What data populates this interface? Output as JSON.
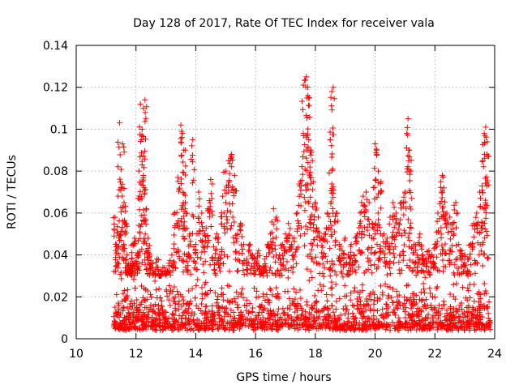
{
  "chart_data": {
    "type": "scatter",
    "title": "Day 128 of 2017, Rate Of TEC Index for receiver vala",
    "xlabel": "GPS time / hours",
    "ylabel": "ROTI / TECUs",
    "xlim": [
      10,
      24
    ],
    "ylim": [
      0,
      0.14
    ],
    "x_ticks": [
      "10",
      "12",
      "14",
      "16",
      "18",
      "20",
      "22",
      "24"
    ],
    "y_ticks": [
      "0",
      "0.02",
      "0.04",
      "0.06",
      "0.08",
      "0.1",
      "0.12",
      "0.14"
    ],
    "grid": true,
    "marker": "plus",
    "color": "#ff0000",
    "series": [
      {
        "x": [
          11.3,
          11.35,
          11.4,
          11.45,
          11.5,
          11.55,
          11.6,
          11.65,
          11.7,
          11.75,
          11.8,
          11.85,
          11.9,
          11.95,
          12.0,
          12.05,
          12.1,
          12.15,
          12.2,
          12.25,
          12.3,
          12.35,
          12.4,
          12.45,
          12.5,
          12.6,
          12.7,
          12.8,
          12.9,
          13.0,
          13.1,
          13.2,
          13.3,
          13.4,
          13.5,
          13.55,
          13.6,
          13.65,
          13.7,
          13.8,
          13.9,
          14.0,
          14.1,
          14.2,
          14.3,
          14.4,
          14.5,
          14.6,
          14.7,
          14.8,
          14.9,
          15.0,
          15.1,
          15.2,
          15.3,
          15.4,
          15.5,
          15.6,
          15.7,
          15.8,
          15.9,
          16.0,
          16.1,
          16.2,
          16.3,
          16.4,
          16.5,
          16.6,
          16.7,
          16.8,
          16.9,
          17.0,
          17.1,
          17.2,
          17.3,
          17.4,
          17.5,
          17.6,
          17.7,
          17.75,
          17.8,
          17.85,
          17.9,
          18.0,
          18.1,
          18.2,
          18.3,
          18.4,
          18.5,
          18.55,
          18.6,
          18.7,
          18.8,
          18.9,
          19.0,
          19.1,
          19.2,
          19.3,
          19.4,
          19.5,
          19.6,
          19.7,
          19.8,
          19.9,
          20.0,
          20.05,
          20.1,
          20.2,
          20.3,
          20.4,
          20.5,
          20.6,
          20.7,
          20.8,
          20.9,
          21.0,
          21.1,
          21.15,
          21.2,
          21.3,
          21.4,
          21.5,
          21.6,
          21.7,
          21.8,
          21.9,
          22.0,
          22.1,
          22.2,
          22.25,
          22.3,
          22.4,
          22.5,
          22.6,
          22.7,
          22.8,
          22.9,
          23.0,
          23.1,
          23.2,
          23.3,
          23.4,
          23.5,
          23.6,
          23.65,
          23.7,
          23.75
        ],
        "y": [
          0.058,
          0.045,
          0.068,
          0.103,
          0.072,
          0.093,
          0.065,
          0.055,
          0.04,
          0.035,
          0.032,
          0.038,
          0.045,
          0.048,
          0.037,
          0.04,
          0.08,
          0.112,
          0.097,
          0.11,
          0.114,
          0.062,
          0.048,
          0.04,
          0.036,
          0.032,
          0.038,
          0.03,
          0.034,
          0.032,
          0.036,
          0.04,
          0.06,
          0.077,
          0.102,
          0.098,
          0.09,
          0.065,
          0.04,
          0.05,
          0.095,
          0.045,
          0.07,
          0.06,
          0.05,
          0.062,
          0.076,
          0.044,
          0.05,
          0.04,
          0.068,
          0.08,
          0.085,
          0.088,
          0.078,
          0.05,
          0.055,
          0.045,
          0.038,
          0.045,
          0.04,
          0.038,
          0.042,
          0.032,
          0.038,
          0.045,
          0.05,
          0.062,
          0.058,
          0.04,
          0.045,
          0.05,
          0.055,
          0.045,
          0.048,
          0.06,
          0.075,
          0.121,
          0.125,
          0.116,
          0.115,
          0.09,
          0.085,
          0.065,
          0.058,
          0.048,
          0.05,
          0.06,
          0.095,
          0.118,
          0.12,
          0.06,
          0.045,
          0.042,
          0.048,
          0.04,
          0.045,
          0.04,
          0.05,
          0.06,
          0.068,
          0.07,
          0.065,
          0.055,
          0.093,
          0.09,
          0.06,
          0.075,
          0.05,
          0.048,
          0.058,
          0.065,
          0.06,
          0.055,
          0.065,
          0.07,
          0.105,
          0.09,
          0.08,
          0.045,
          0.04,
          0.05,
          0.04,
          0.038,
          0.042,
          0.04,
          0.045,
          0.06,
          0.075,
          0.078,
          0.072,
          0.06,
          0.058,
          0.055,
          0.065,
          0.045,
          0.042,
          0.04,
          0.038,
          0.045,
          0.055,
          0.06,
          0.07,
          0.085,
          0.098,
          0.101,
          0.094
        ]
      }
    ],
    "background_band": {
      "x_start": 11.25,
      "x_end": 23.85,
      "y_low": 0.004,
      "y_high": 0.03,
      "typical": 0.013
    }
  }
}
